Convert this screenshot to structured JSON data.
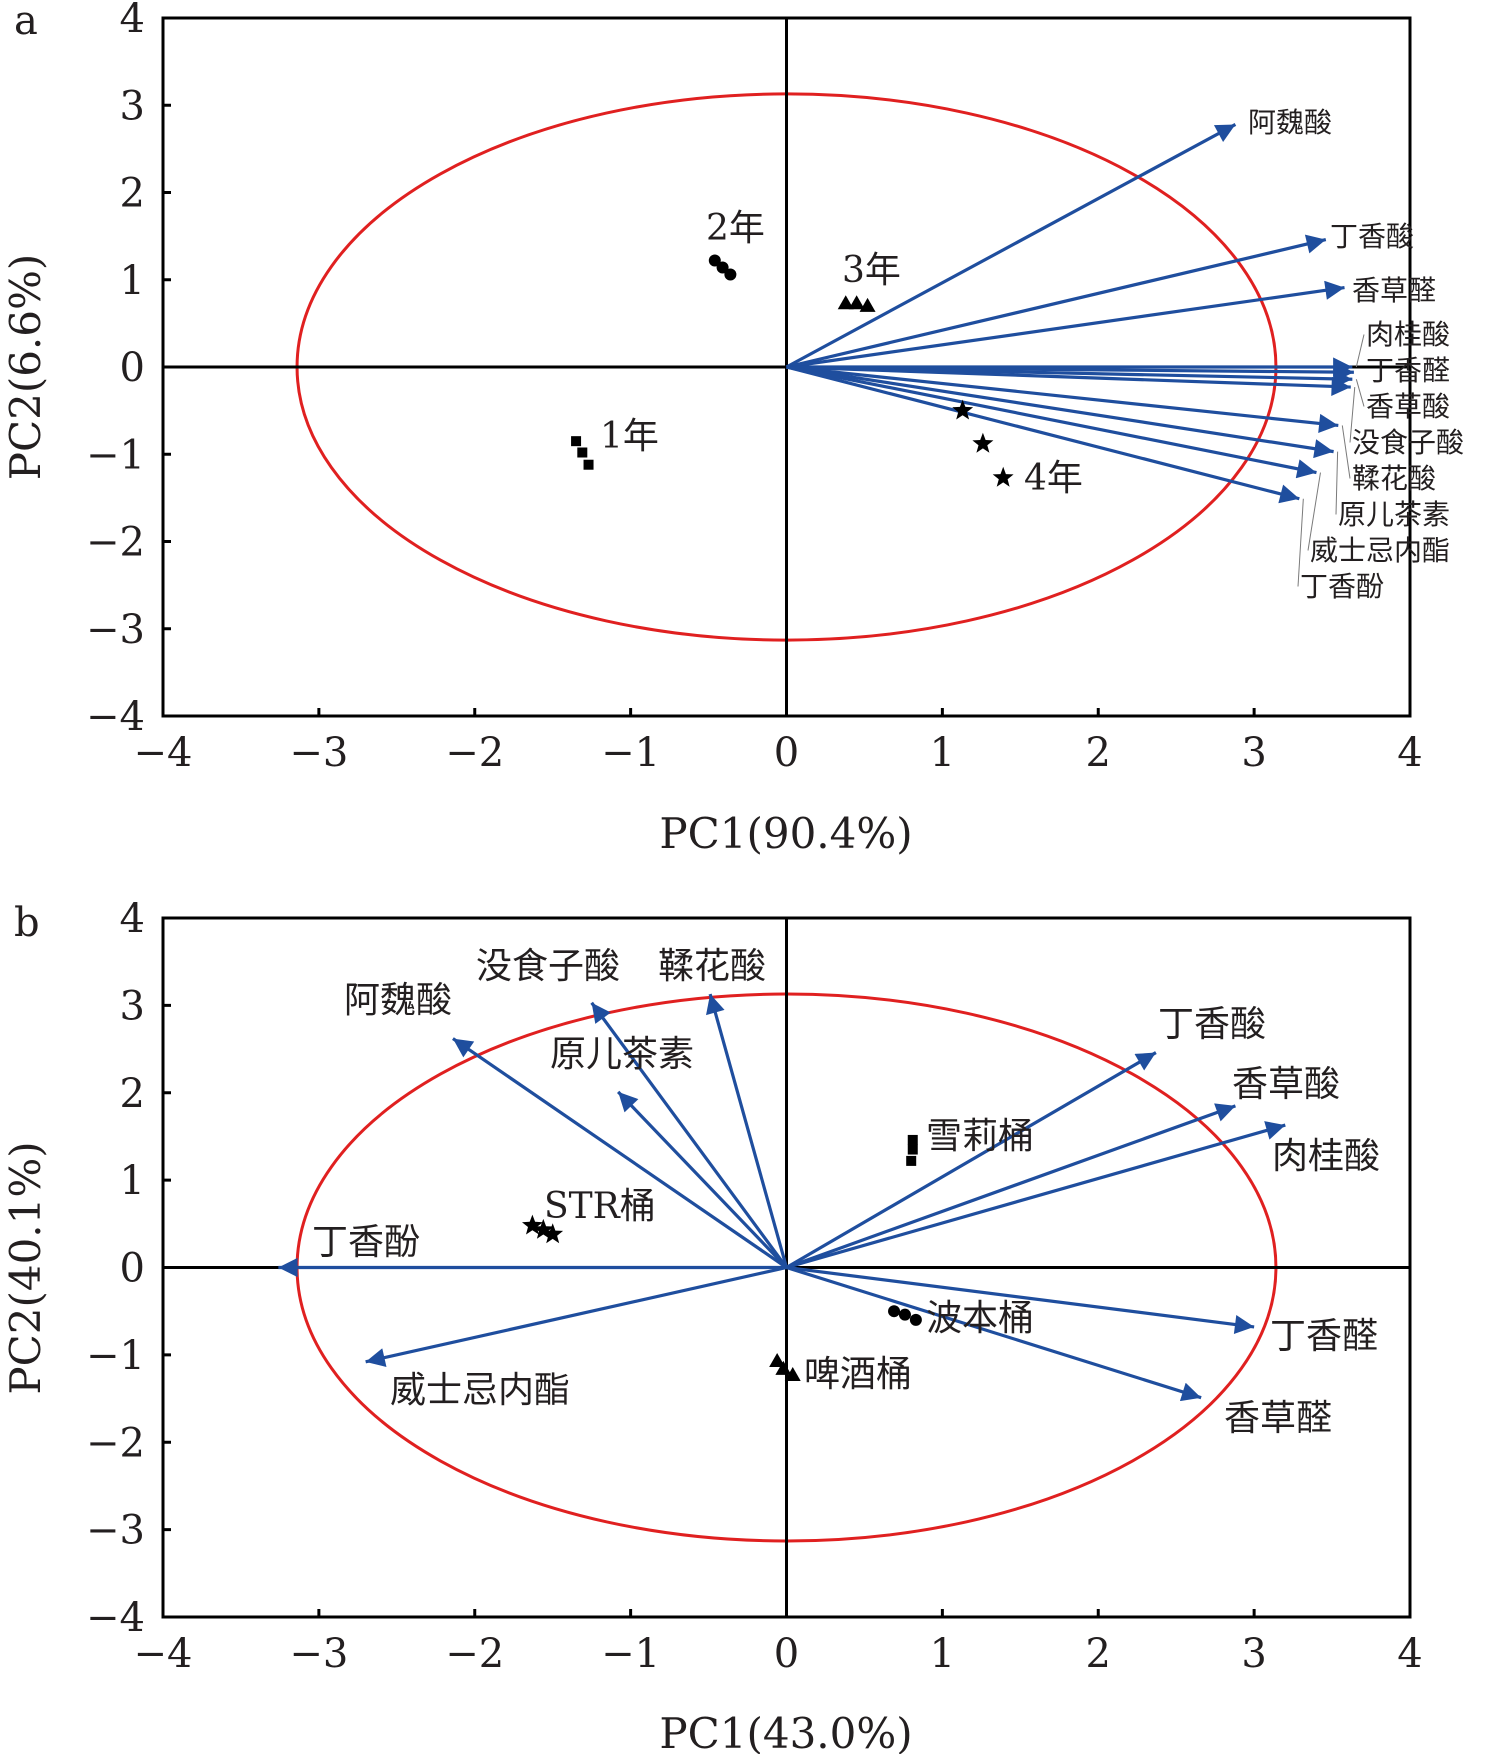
{
  "chart_data": [
    {
      "type": "scatter",
      "subtype": "pca-biplot",
      "panel_label": "a",
      "xlabel": "PC1(90.4%)",
      "ylabel": "PC2(6.6%)",
      "xlim": [
        -4,
        4
      ],
      "ylim": [
        -4,
        4
      ],
      "xticks": [
        "−4",
        "−3",
        "−2",
        "−1",
        "0",
        "1",
        "2",
        "3",
        "4"
      ],
      "yticks": [
        "4",
        "3",
        "2",
        "1",
        "0",
        "−1",
        "−2",
        "−3",
        "−4"
      ],
      "tick_values": [
        -4,
        -3,
        -2,
        -1,
        0,
        1,
        2,
        3,
        4
      ],
      "grid": false,
      "ellipse": {
        "rx": 3.14,
        "ry": 3.13,
        "color": "#e02020"
      },
      "loadings": [
        {
          "name": "阿魏酸",
          "x": 2.88,
          "y": 2.78
        },
        {
          "name": "丁香酸",
          "x": 3.46,
          "y": 1.46
        },
        {
          "name": "香草醛",
          "x": 3.58,
          "y": 0.91
        },
        {
          "name": "肉桂酸",
          "x": 3.63,
          "y": 0.0
        },
        {
          "name": "丁香醛",
          "x": 3.64,
          "y": -0.06
        },
        {
          "name": "香草酸",
          "x": 3.63,
          "y": -0.14
        },
        {
          "name": "没食子酸",
          "x": 3.62,
          "y": -0.23
        },
        {
          "name": "鞣花酸",
          "x": 3.54,
          "y": -0.67
        },
        {
          "name": "原儿茶素",
          "x": 3.51,
          "y": -0.97
        },
        {
          "name": "威士忌内酯",
          "x": 3.4,
          "y": -1.21
        },
        {
          "name": "丁香酚",
          "x": 3.29,
          "y": -1.51
        }
      ],
      "groups": [
        {
          "name": "1年",
          "marker": "square",
          "points": [
            [
              -1.35,
              -0.85
            ],
            [
              -1.31,
              -0.98
            ],
            [
              -1.27,
              -1.12
            ]
          ]
        },
        {
          "name": "2年",
          "marker": "circle",
          "points": [
            [
              -0.46,
              1.22
            ],
            [
              -0.41,
              1.14
            ],
            [
              -0.36,
              1.06
            ]
          ]
        },
        {
          "name": "3年",
          "marker": "triangle",
          "points": [
            [
              0.38,
              0.73
            ],
            [
              0.45,
              0.73
            ],
            [
              0.52,
              0.7
            ]
          ]
        },
        {
          "name": "4年",
          "marker": "star",
          "points": [
            [
              1.13,
              -0.5
            ],
            [
              1.26,
              -0.88
            ],
            [
              1.39,
              -1.27
            ]
          ]
        }
      ]
    },
    {
      "type": "scatter",
      "subtype": "pca-biplot",
      "panel_label": "b",
      "xlabel": "PC1(43.0%)",
      "ylabel": "PC2(40.1%)",
      "xlim": [
        -4,
        4
      ],
      "ylim": [
        -4,
        4
      ],
      "xticks": [
        "−4",
        "−3",
        "−2",
        "−1",
        "0",
        "1",
        "2",
        "3",
        "4"
      ],
      "yticks": [
        "4",
        "3",
        "2",
        "1",
        "0",
        "−1",
        "−2",
        "−3",
        "−4"
      ],
      "tick_values": [
        -4,
        -3,
        -2,
        -1,
        0,
        1,
        2,
        3,
        4
      ],
      "grid": false,
      "ellipse": {
        "rx": 3.14,
        "ry": 3.13,
        "color": "#e02020"
      },
      "loadings": [
        {
          "name": "阿魏酸",
          "x": -2.14,
          "y": 2.62
        },
        {
          "name": "没食子酸",
          "x": -1.25,
          "y": 3.03
        },
        {
          "name": "鞣花酸",
          "x": -0.49,
          "y": 3.13
        },
        {
          "name": "原儿茶素",
          "x": -1.08,
          "y": 2.01
        },
        {
          "name": "丁香酸",
          "x": 2.37,
          "y": 2.46
        },
        {
          "name": "香草酸",
          "x": 2.88,
          "y": 1.85
        },
        {
          "name": "肉桂酸",
          "x": 3.2,
          "y": 1.63
        },
        {
          "name": "丁香醛",
          "x": 3.0,
          "y": -0.68
        },
        {
          "name": "香草醛",
          "x": 2.66,
          "y": -1.49
        },
        {
          "name": "丁香酚",
          "x": -3.26,
          "y": 0.0
        },
        {
          "name": "威士忌内酯",
          "x": -2.7,
          "y": -1.08
        }
      ],
      "groups": [
        {
          "name": "雪莉桶",
          "marker": "square",
          "points": [
            [
              0.81,
              1.46
            ],
            [
              0.81,
              1.35
            ],
            [
              0.8,
              1.22
            ]
          ]
        },
        {
          "name": "STR桶",
          "marker": "star",
          "points": [
            [
              -1.63,
              0.48
            ],
            [
              -1.56,
              0.43
            ],
            [
              -1.5,
              0.38
            ]
          ]
        },
        {
          "name": "波本桶",
          "marker": "circle",
          "points": [
            [
              0.69,
              -0.5
            ],
            [
              0.76,
              -0.54
            ],
            [
              0.83,
              -0.6
            ]
          ]
        },
        {
          "name": "啤酒桶",
          "marker": "triangle",
          "points": [
            [
              -0.06,
              -1.07
            ],
            [
              -0.02,
              -1.16
            ],
            [
              0.04,
              -1.23
            ]
          ]
        }
      ]
    }
  ],
  "colors": {
    "arrow": "#1f4e9e",
    "ellipse": "#e02020",
    "axis": "#000000",
    "text": "#231f20"
  }
}
